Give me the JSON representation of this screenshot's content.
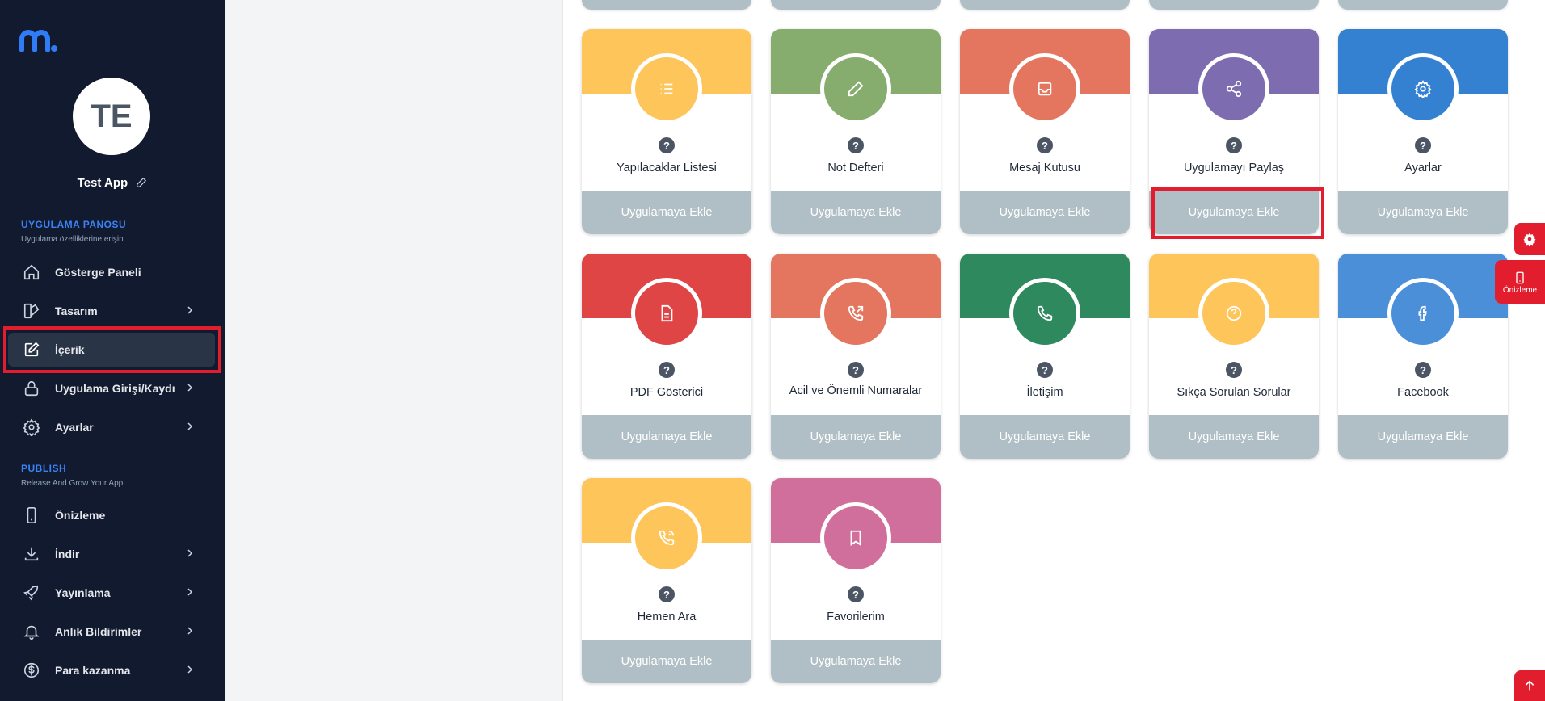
{
  "sidebar": {
    "avatar_initials": "TE",
    "app_name": "Test App",
    "sections": {
      "dashboard_title": "UYGULAMA PANOSU",
      "dashboard_subtitle": "Uygulama özelliklerine erişin",
      "publish_title": "PUBLISH",
      "publish_subtitle": "Release And Grow Your App"
    },
    "items": [
      {
        "label": "Gösterge Paneli",
        "icon": "home-icon"
      },
      {
        "label": "Tasarım",
        "icon": "design-icon"
      },
      {
        "label": "İçerik",
        "icon": "edit-icon"
      },
      {
        "label": "Uygulama Girişi/Kaydı",
        "icon": "lock-icon"
      },
      {
        "label": "Ayarlar",
        "icon": "gear-icon"
      },
      {
        "label": "Önizleme",
        "icon": "phone-icon"
      },
      {
        "label": "İndir",
        "icon": "download-icon"
      },
      {
        "label": "Yayınlama",
        "icon": "rocket-icon"
      },
      {
        "label": "Anlık Bildirimler",
        "icon": "bell-icon"
      },
      {
        "label": "Para kazanma",
        "icon": "dollar-icon"
      }
    ]
  },
  "cards": [
    {
      "title": "Yapılacaklar Listesi",
      "button": "Uygulamaya Ekle",
      "color": "#fdc55a",
      "icon": "list-icon"
    },
    {
      "title": "Not Defteri",
      "button": "Uygulamaya Ekle",
      "color": "#86ad6e",
      "icon": "pencil-icon"
    },
    {
      "title": "Mesaj Kutusu",
      "button": "Uygulamaya Ekle",
      "color": "#e47660",
      "icon": "inbox-icon"
    },
    {
      "title": "Uygulamayı Paylaş",
      "button": "Uygulamaya Ekle",
      "color": "#7d6db0",
      "icon": "share-icon"
    },
    {
      "title": "Ayarlar",
      "button": "Uygulamaya Ekle",
      "color": "#3481d1",
      "icon": "gear-icon"
    },
    {
      "title": "PDF Gösterici",
      "button": "Uygulamaya Ekle",
      "color": "#e04545",
      "icon": "file-icon"
    },
    {
      "title": "Acil ve Önemli Numaralar",
      "button": "Uygulamaya Ekle",
      "color": "#e47660",
      "icon": "phone-outgoing-icon"
    },
    {
      "title": "İletişim",
      "button": "Uygulamaya Ekle",
      "color": "#2e8a5e",
      "icon": "phone-icon"
    },
    {
      "title": "Sıkça Sorulan Sorular",
      "button": "Uygulamaya Ekle",
      "color": "#fdc55a",
      "icon": "question-circle-icon"
    },
    {
      "title": "Facebook",
      "button": "Uygulamaya Ekle",
      "color": "#4a8fd8",
      "icon": "facebook-icon"
    },
    {
      "title": "Hemen Ara",
      "button": "Uygulamaya Ekle",
      "color": "#fdc55a",
      "icon": "phone-call-icon"
    },
    {
      "title": "Favorilerim",
      "button": "Uygulamaya Ekle",
      "color": "#d06f9c",
      "icon": "bookmark-icon"
    }
  ],
  "help_glyph": "?",
  "floating": {
    "preview_label": "Önizleme"
  },
  "colors": {
    "sidebar_bg": "#111a2e",
    "accent": "#3b82f6",
    "highlight": "#e11d2e",
    "button_bg": "#b0bec5"
  }
}
